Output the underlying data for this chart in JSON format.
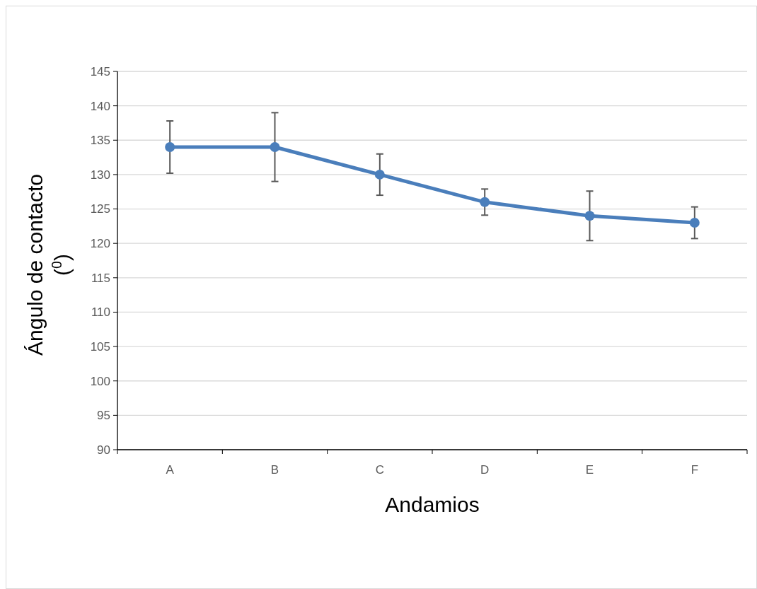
{
  "chart_data": {
    "type": "line",
    "xlabel": "Andamios",
    "ylabel": "Ángulo de contacto ($^{0}$)",
    "categories": [
      "A",
      "B",
      "C",
      "D",
      "E",
      "F"
    ],
    "series": [
      {
        "color": "#4a7ebb",
        "values": [
          134,
          134,
          130,
          126,
          124,
          123
        ],
        "errors": [
          3.8,
          5,
          3,
          1.9,
          3.6,
          2.3
        ]
      }
    ],
    "ylim": [
      90,
      145
    ],
    "yticks": [
      90,
      95,
      100,
      105,
      110,
      115,
      120,
      125,
      130,
      135,
      140,
      145
    ],
    "grid": "y",
    "marker": "circle",
    "line_style": "solid"
  }
}
